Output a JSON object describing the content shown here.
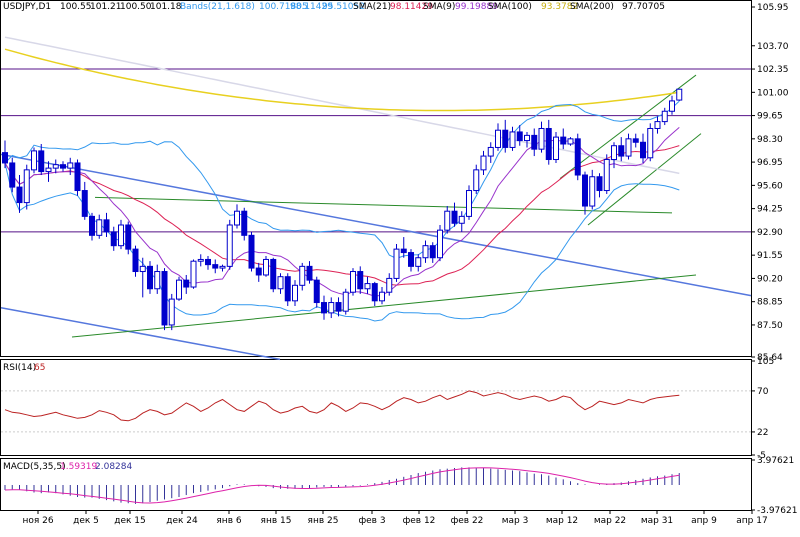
{
  "header": {
    "symbol": "USDJPY,D1",
    "ohlc": [
      "100.55",
      "101.21",
      "100.50",
      "101.18"
    ],
    "bands_label": "Bands(21,1.618)",
    "bands_values": [
      "100.71805",
      "98.11429",
      "95.51052"
    ],
    "sma21_label": "SMA(21)",
    "sma21_value": "98.11429",
    "sma9_label": "SMA(9)",
    "sma9_value": "99.19889",
    "sma100_label": "SMA(100)",
    "sma100_value": "93.3782",
    "sma200_label": "SMA(200)",
    "sma200_value": "97.70705"
  },
  "rsi_panel": {
    "label": "RSI(14)",
    "value": "65"
  },
  "macd_panel": {
    "label": "MACD(5,35,5)",
    "value1": "1.59319",
    "value2": "2.08284"
  },
  "colors": {
    "background": "#ffffff",
    "candle": "#0000cc",
    "bollinger": "#3399ee",
    "sma21": "#dd2255",
    "sma9": "#9933cc",
    "sma100": "#e8d020",
    "sma200": "#d8d8e8",
    "hline": "#551188",
    "trend_blue": "#5577dd",
    "trend_green": "#2a8a2a",
    "rsi_line": "#bb2222",
    "macd_line": "#dd22aa",
    "macd_hist": "#333399"
  },
  "chart_data": {
    "type": "candlestick",
    "symbol": "USDJPY",
    "timeframe": "D1",
    "ylim": [
      85.64,
      105.95
    ],
    "price_axis_ticks": [
      "105.95",
      "103.70",
      "102.35",
      "101.00",
      "99.65",
      "98.30",
      "96.95",
      "95.60",
      "94.25",
      "92.90",
      "91.55",
      "90.20",
      "88.85",
      "87.50",
      "85.64"
    ],
    "x_ticks": [
      "ноя 26",
      "дек 5",
      "дек 15",
      "дек 24",
      "янв 6",
      "янв 15",
      "янв 25",
      "фев 3",
      "фев 12",
      "фев 22",
      "мар 3",
      "мар 12",
      "мар 22",
      "мар 31",
      "апр 9",
      "апр 17"
    ],
    "horizontal_levels": [
      102.35,
      99.65,
      92.9
    ],
    "last_close": 101.18,
    "rsi": {
      "ticks": [
        "105",
        "70",
        "22",
        "-5"
      ],
      "last": 65,
      "values": [
        48,
        45,
        44,
        42,
        40,
        41,
        43,
        45,
        42,
        40,
        38,
        39,
        42,
        47,
        45,
        42,
        36,
        35,
        38,
        44,
        48,
        46,
        42,
        44,
        50,
        56,
        52,
        46,
        50,
        56,
        60,
        54,
        48,
        46,
        52,
        58,
        55,
        48,
        44,
        46,
        50,
        52,
        46,
        44,
        48,
        56,
        52,
        46,
        50,
        56,
        55,
        52,
        48,
        52,
        58,
        62,
        60,
        56,
        58,
        62,
        65,
        60,
        63,
        66,
        70,
        68,
        64,
        66,
        68,
        66,
        62,
        60,
        62,
        64,
        62,
        58,
        60,
        64,
        62,
        54,
        48,
        52,
        58,
        56,
        54,
        56,
        60,
        58,
        56,
        60,
        62,
        63,
        64,
        65
      ]
    },
    "macd": {
      "ticks": [
        "3.97621",
        "-3.97621"
      ],
      "value1": 1.59319,
      "value2": 2.08284,
      "hist": [
        -0.8,
        -0.7,
        -0.8,
        -1.0,
        -1.2,
        -1.3,
        -1.2,
        -1.3,
        -1.5,
        -1.7,
        -1.9,
        -2.0,
        -2.0,
        -2.2,
        -2.4,
        -2.6,
        -2.8,
        -2.9,
        -3.0,
        -2.9,
        -2.7,
        -2.5,
        -2.3,
        -2.1,
        -1.9,
        -1.6,
        -1.3,
        -1.1,
        -0.9,
        -0.7,
        -0.5,
        -0.2,
        0.1,
        0.1,
        0.0,
        -0.2,
        -0.3,
        -0.5,
        -0.6,
        -0.6,
        -0.6,
        -0.5,
        -0.5,
        -0.4,
        -0.3,
        -0.3,
        -0.4,
        -0.3,
        -0.2,
        -0.1,
        0.1,
        0.3,
        0.5,
        0.8,
        1.0,
        1.3,
        1.6,
        1.9,
        2.1,
        2.3,
        2.5,
        2.6,
        2.7,
        2.8,
        2.8,
        2.7,
        2.7,
        2.6,
        2.5,
        2.4,
        2.3,
        2.2,
        2.0,
        1.8,
        1.7,
        1.5,
        1.2,
        0.9,
        0.6,
        0.3,
        0.1,
        0.0,
        0.1,
        0.2,
        0.3,
        0.4,
        0.6,
        0.8,
        1.0,
        1.2,
        1.4,
        1.5,
        1.7,
        1.9
      ]
    },
    "candles": [
      [
        97.5,
        98.2,
        96.6,
        96.9
      ],
      [
        96.9,
        97.2,
        95.2,
        95.5
      ],
      [
        95.5,
        96.2,
        94.0,
        94.6
      ],
      [
        94.6,
        96.8,
        94.2,
        96.5
      ],
      [
        96.5,
        97.8,
        96.3,
        97.6
      ],
      [
        97.6,
        98.0,
        96.2,
        96.4
      ],
      [
        96.4,
        97.0,
        95.8,
        96.6
      ],
      [
        96.6,
        97.1,
        96.3,
        96.8
      ],
      [
        96.8,
        97.0,
        96.4,
        96.6
      ],
      [
        96.6,
        97.2,
        96.2,
        96.9
      ],
      [
        96.9,
        97.1,
        95.0,
        95.3
      ],
      [
        95.3,
        95.8,
        93.6,
        93.8
      ],
      [
        93.8,
        94.0,
        92.4,
        92.7
      ],
      [
        92.7,
        93.9,
        92.5,
        93.6
      ],
      [
        93.6,
        94.0,
        92.6,
        92.9
      ],
      [
        92.9,
        93.2,
        91.8,
        92.1
      ],
      [
        92.1,
        93.6,
        91.9,
        93.3
      ],
      [
        93.3,
        93.5,
        91.6,
        91.9
      ],
      [
        91.9,
        92.1,
        90.3,
        90.6
      ],
      [
        90.6,
        91.4,
        89.1,
        90.9
      ],
      [
        90.9,
        91.2,
        89.3,
        89.6
      ],
      [
        89.6,
        91.0,
        89.3,
        90.6
      ],
      [
        90.6,
        90.8,
        87.2,
        87.5
      ],
      [
        87.5,
        89.3,
        87.2,
        89.0
      ],
      [
        89.0,
        90.3,
        88.9,
        90.1
      ],
      [
        90.1,
        90.4,
        89.3,
        89.7
      ],
      [
        89.7,
        91.3,
        89.6,
        91.2
      ],
      [
        91.2,
        91.6,
        90.9,
        91.3
      ],
      [
        91.3,
        91.5,
        90.7,
        91.0
      ],
      [
        91.0,
        91.3,
        90.5,
        90.8
      ],
      [
        90.8,
        91.0,
        90.6,
        90.9
      ],
      [
        90.9,
        93.6,
        90.7,
        93.3
      ],
      [
        93.3,
        94.5,
        93.1,
        94.1
      ],
      [
        94.1,
        94.3,
        92.4,
        92.7
      ],
      [
        92.7,
        92.9,
        90.6,
        90.8
      ],
      [
        90.8,
        91.1,
        90.0,
        90.4
      ],
      [
        90.4,
        91.5,
        90.3,
        91.3
      ],
      [
        91.3,
        91.4,
        89.4,
        89.6
      ],
      [
        89.6,
        90.5,
        89.3,
        90.3
      ],
      [
        90.3,
        90.5,
        88.6,
        88.9
      ],
      [
        88.9,
        90.1,
        88.6,
        89.8
      ],
      [
        89.8,
        91.1,
        89.5,
        90.9
      ],
      [
        90.9,
        91.2,
        89.9,
        90.1
      ],
      [
        90.1,
        90.3,
        88.5,
        88.8
      ],
      [
        88.8,
        89.2,
        87.8,
        88.2
      ],
      [
        88.2,
        89.1,
        87.9,
        88.8
      ],
      [
        88.8,
        89.1,
        88.0,
        88.3
      ],
      [
        88.3,
        89.6,
        88.1,
        89.4
      ],
      [
        89.4,
        90.8,
        89.2,
        90.6
      ],
      [
        90.6,
        90.9,
        89.3,
        89.6
      ],
      [
        89.6,
        90.3,
        89.3,
        89.9
      ],
      [
        89.9,
        90.0,
        88.6,
        88.9
      ],
      [
        88.9,
        89.7,
        88.7,
        89.4
      ],
      [
        89.4,
        90.5,
        89.2,
        90.2
      ],
      [
        90.2,
        92.2,
        90.0,
        91.9
      ],
      [
        91.9,
        92.6,
        91.4,
        91.7
      ],
      [
        91.7,
        91.9,
        90.6,
        90.9
      ],
      [
        90.9,
        91.6,
        90.6,
        91.4
      ],
      [
        91.4,
        92.4,
        91.1,
        92.1
      ],
      [
        92.1,
        92.3,
        91.1,
        91.4
      ],
      [
        91.4,
        93.3,
        91.2,
        93.0
      ],
      [
        93.0,
        94.4,
        92.8,
        94.1
      ],
      [
        94.1,
        94.6,
        93.2,
        93.4
      ],
      [
        93.4,
        94.1,
        92.9,
        93.8
      ],
      [
        93.8,
        95.6,
        93.6,
        95.3
      ],
      [
        95.3,
        96.8,
        95.1,
        96.5
      ],
      [
        96.5,
        97.6,
        96.2,
        97.3
      ],
      [
        97.3,
        98.1,
        96.9,
        97.8
      ],
      [
        97.8,
        99.2,
        97.6,
        98.8
      ],
      [
        98.8,
        99.4,
        97.5,
        97.8
      ],
      [
        97.8,
        99.0,
        97.6,
        98.7
      ],
      [
        98.7,
        99.1,
        97.9,
        98.2
      ],
      [
        98.2,
        98.7,
        97.8,
        98.5
      ],
      [
        98.5,
        98.9,
        97.3,
        97.7
      ],
      [
        97.7,
        99.3,
        97.5,
        98.9
      ],
      [
        98.9,
        99.4,
        96.8,
        97.1
      ],
      [
        97.1,
        98.7,
        96.9,
        98.4
      ],
      [
        98.4,
        98.9,
        97.7,
        98.0
      ],
      [
        98.0,
        98.4,
        97.9,
        98.3
      ],
      [
        98.3,
        98.6,
        95.9,
        96.2
      ],
      [
        96.2,
        96.4,
        93.9,
        94.4
      ],
      [
        94.4,
        96.5,
        94.2,
        96.1
      ],
      [
        96.1,
        96.3,
        94.9,
        95.3
      ],
      [
        95.3,
        97.4,
        95.1,
        97.1
      ],
      [
        97.1,
        98.1,
        96.6,
        97.9
      ],
      [
        97.9,
        98.4,
        97.0,
        97.3
      ],
      [
        97.3,
        98.6,
        97.1,
        98.3
      ],
      [
        98.3,
        98.6,
        97.8,
        98.1
      ],
      [
        98.1,
        98.6,
        96.9,
        97.2
      ],
      [
        97.2,
        99.2,
        97.0,
        98.9
      ],
      [
        98.9,
        99.6,
        98.6,
        99.3
      ],
      [
        99.3,
        100.1,
        99.1,
        99.9
      ],
      [
        99.9,
        100.8,
        99.7,
        100.5
      ],
      [
        100.55,
        101.21,
        100.5,
        101.18
      ]
    ]
  }
}
